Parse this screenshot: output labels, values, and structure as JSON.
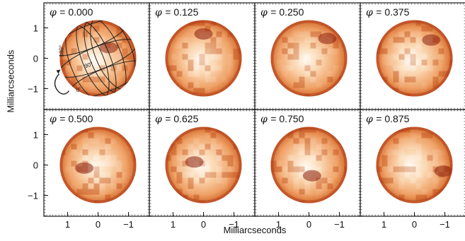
{
  "figure": {
    "ylabel": "Milliarcseconds",
    "xlabel": "Milliarcseconds",
    "phase_symbol": "φ",
    "panels": [
      {
        "phase": "= 0.000",
        "has_grid": true
      },
      {
        "phase": "= 0.125",
        "has_grid": false
      },
      {
        "phase": "= 0.250",
        "has_grid": false
      },
      {
        "phase": "= 0.375",
        "has_grid": false
      },
      {
        "phase": "= 0.500",
        "has_grid": false
      },
      {
        "phase": "= 0.625",
        "has_grid": false
      },
      {
        "phase": "= 0.750",
        "has_grid": false
      },
      {
        "phase": "= 0.875",
        "has_grid": false
      }
    ],
    "ytick_labels": [
      "1",
      "0",
      "−1"
    ],
    "xtick_labels": [
      "1",
      "0",
      "−1"
    ],
    "grid_annotations": [
      "180°",
      "90°",
      "0°"
    ],
    "colors": {
      "dark": "#8a1f0d",
      "mid": "#e0702a",
      "light": "#fde9d2",
      "frame": "#1a1a1a"
    }
  }
}
